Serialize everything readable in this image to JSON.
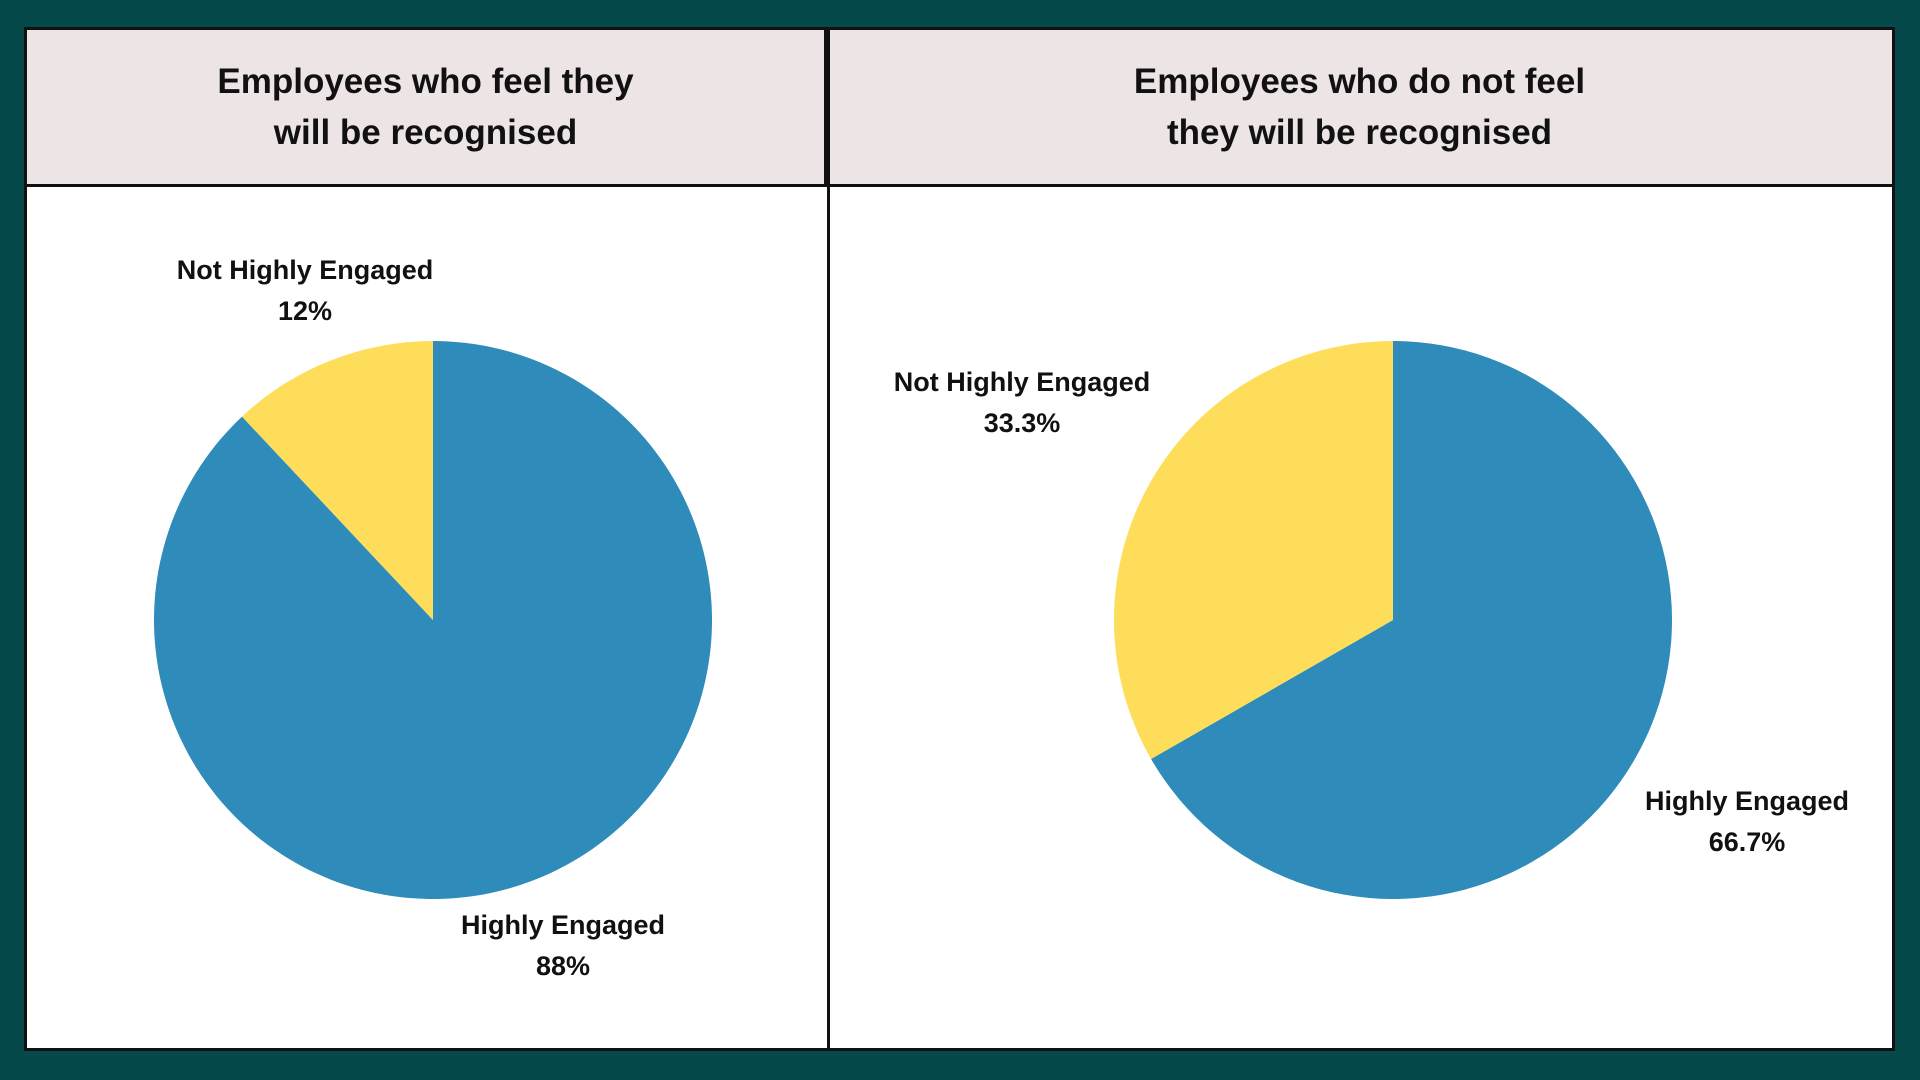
{
  "chart_data": [
    {
      "type": "pie",
      "title": "Employees who feel they will be recognised",
      "categories": [
        "Highly Engaged",
        "Not Highly Engaged"
      ],
      "values": [
        88,
        12
      ],
      "value_labels": [
        "88%",
        "12%"
      ],
      "colors": [
        "#2e8bba",
        "#fedd5a"
      ]
    },
    {
      "type": "pie",
      "title": "Employees who do not feel they will be recognised",
      "categories": [
        "Highly Engaged",
        "Not Highly Engaged"
      ],
      "values": [
        66.7,
        33.3
      ],
      "value_labels": [
        "66.7%",
        "33.3%"
      ],
      "colors": [
        "#2e8bba",
        "#fedd5a"
      ]
    }
  ]
}
